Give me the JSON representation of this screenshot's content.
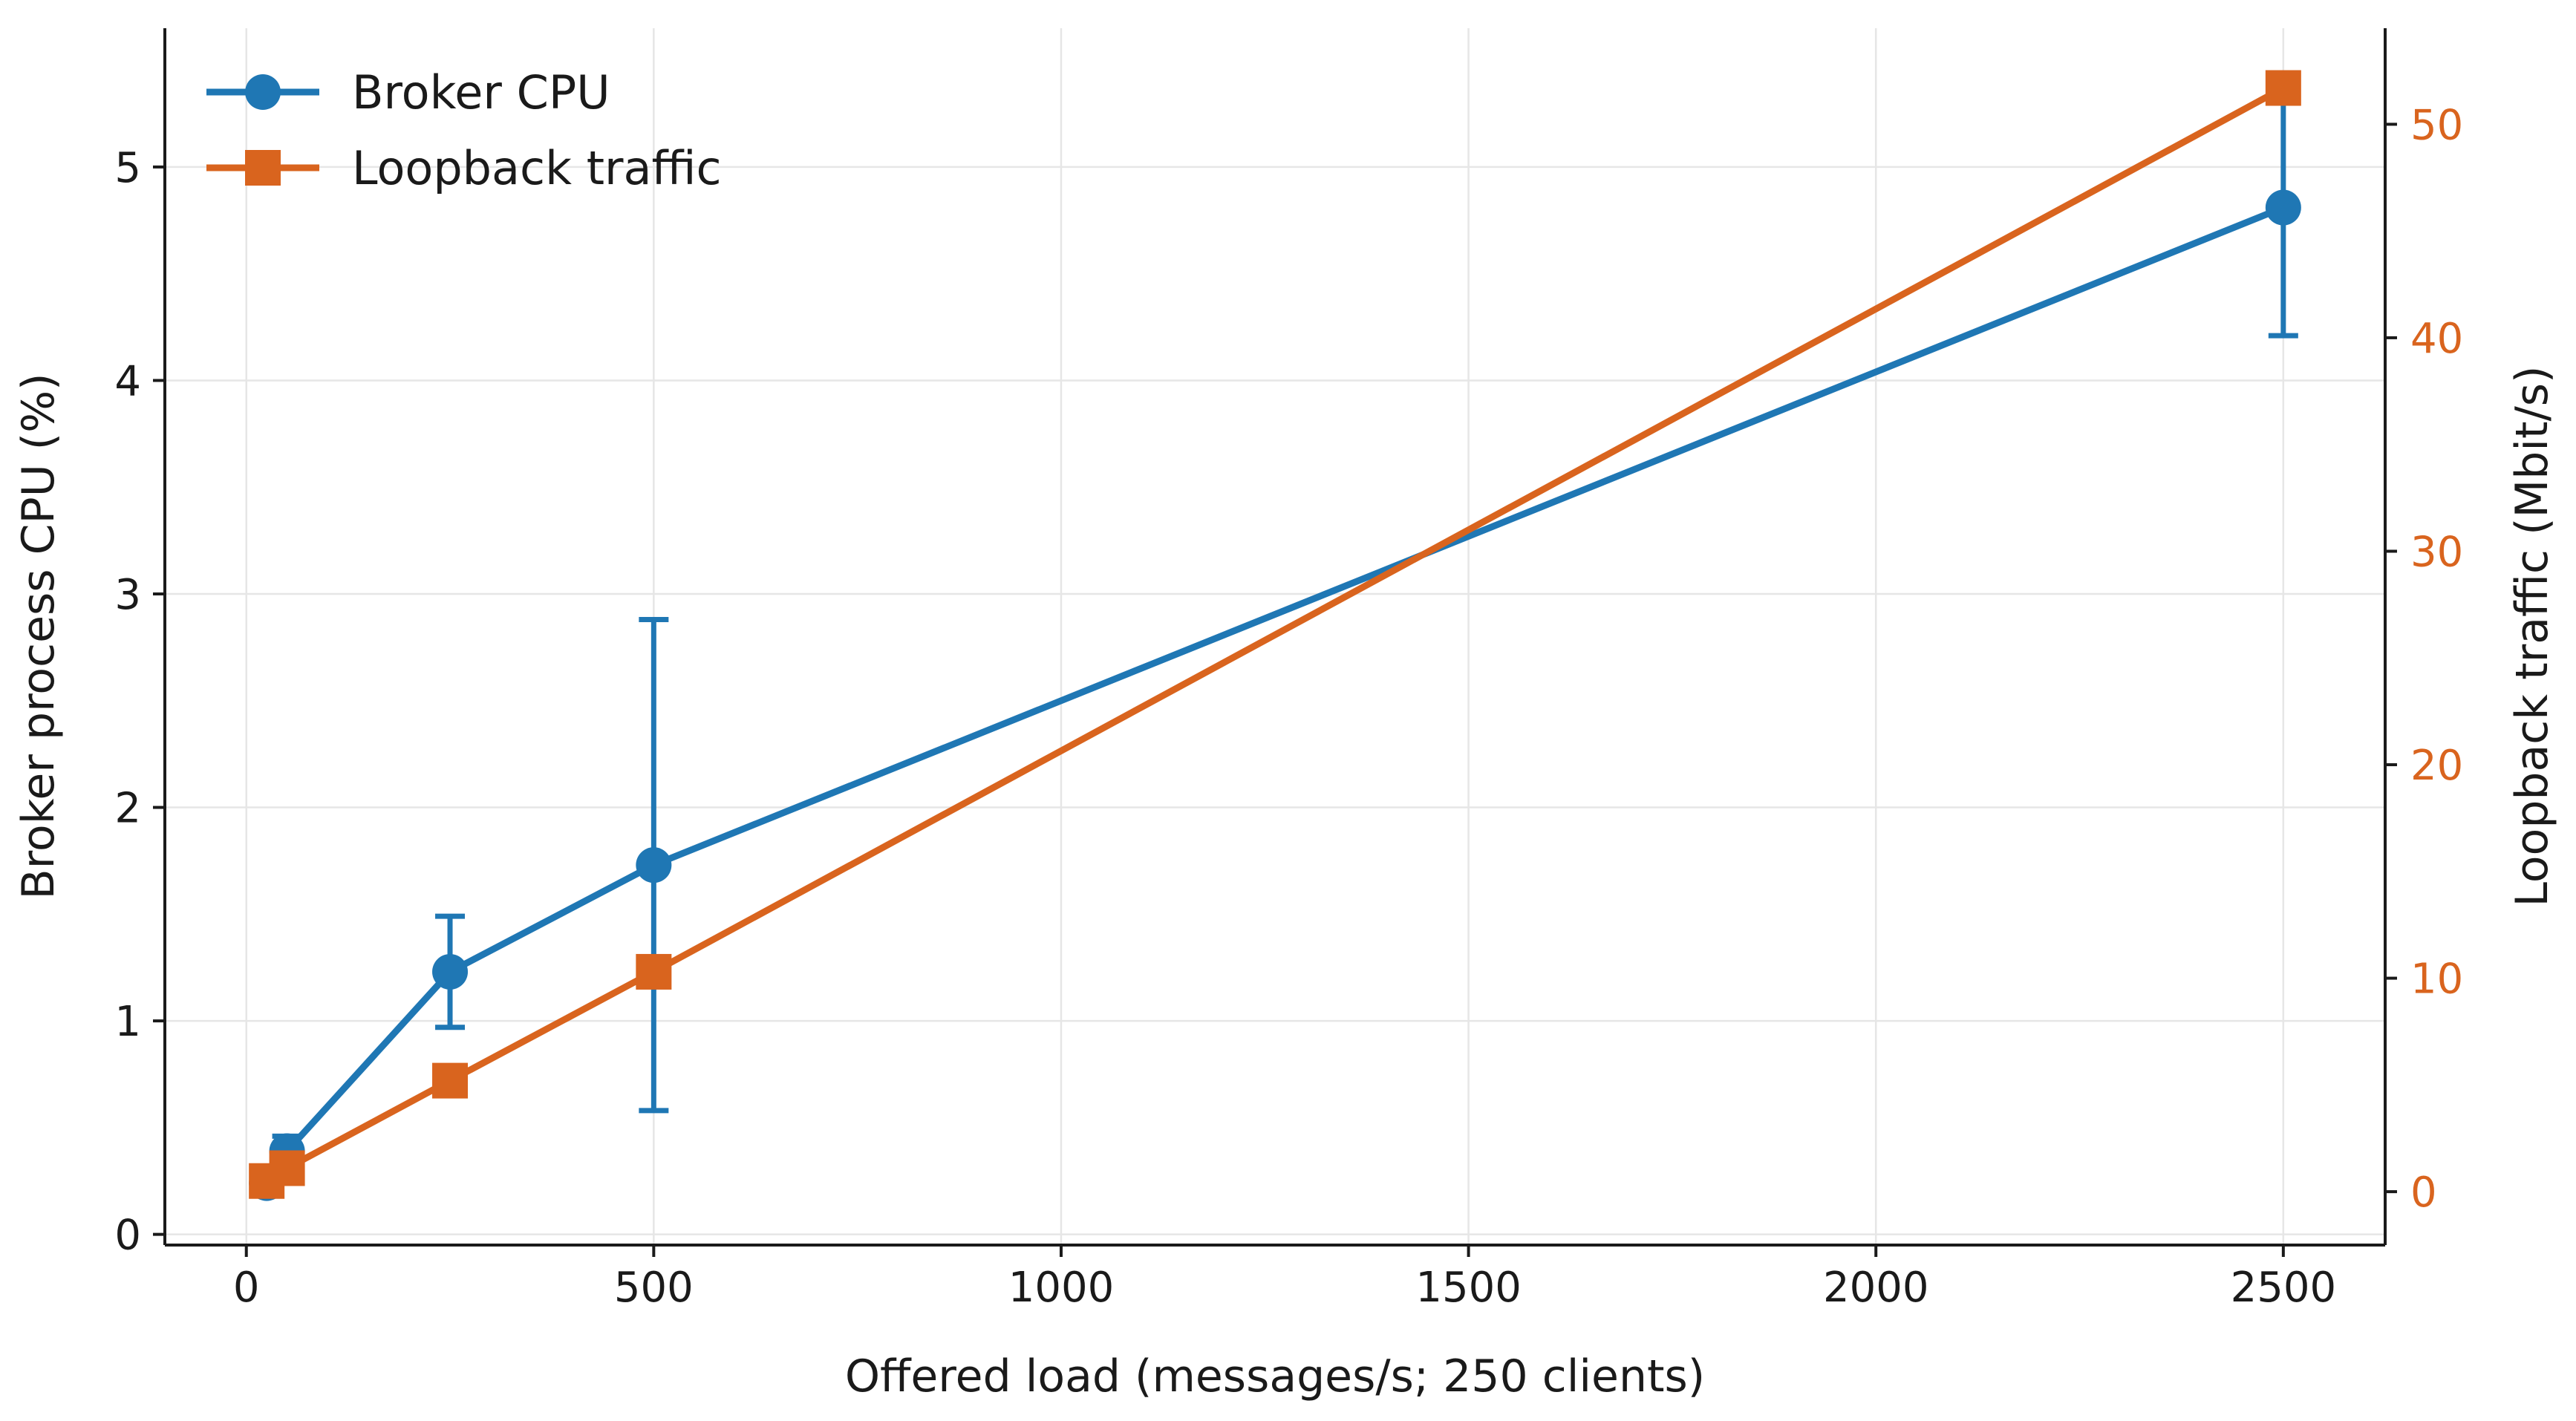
{
  "chart_data": {
    "type": "line",
    "xlabel": "Offered load (messages/s; 250 clients)",
    "ylabel_left": "Broker process CPU (%)",
    "ylabel_right": "Loopback traffic (Mbit/s)",
    "xlim": [
      -100,
      2625
    ],
    "ylim_left": [
      -0.05,
      5.65
    ],
    "ylim_right": [
      -2.5,
      54.5
    ],
    "x_ticks": [
      0,
      500,
      1000,
      1500,
      2000,
      2500
    ],
    "y_ticks_left": [
      0,
      1,
      2,
      3,
      4,
      5
    ],
    "y_ticks_right": [
      0,
      10,
      20,
      30,
      40,
      50
    ],
    "grid": true,
    "legend_position": "top-left",
    "series": [
      {
        "name": "Broker CPU",
        "axis": "left",
        "color": "#1f77b4",
        "marker": "circle",
        "x": [
          25,
          50,
          250,
          500,
          2500
        ],
        "y": [
          0.24,
          0.39,
          1.23,
          1.73,
          4.81
        ],
        "error": [
          0.04,
          0.07,
          0.26,
          1.15,
          0.6
        ]
      },
      {
        "name": "Loopback traffic",
        "axis": "right",
        "color": "#d9641e",
        "marker": "square",
        "x": [
          25,
          50,
          250,
          500,
          2500
        ],
        "y": [
          0.5,
          1.1,
          5.2,
          10.3,
          51.7
        ]
      }
    ]
  }
}
